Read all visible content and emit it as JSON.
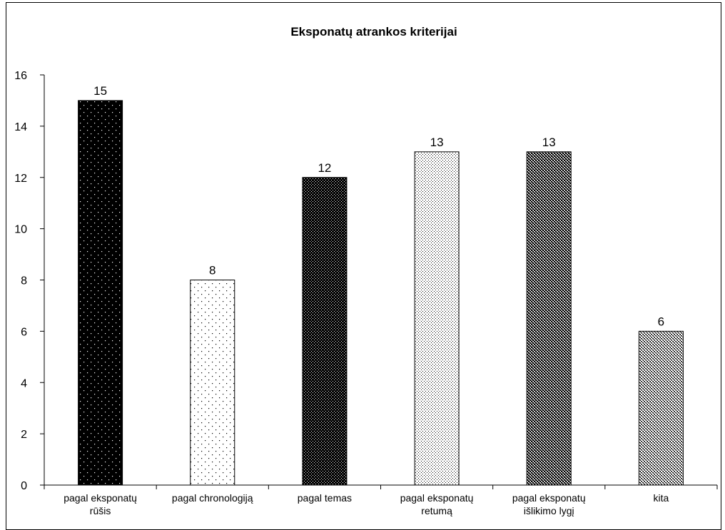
{
  "chart_data": {
    "type": "bar",
    "title": "Eksponatų atrankos kriterijai",
    "xlabel": "",
    "ylabel": "",
    "ylim": [
      0,
      16
    ],
    "yticks": [
      0,
      2,
      4,
      6,
      8,
      10,
      12,
      14,
      16
    ],
    "grid": false,
    "legend": "none",
    "categories": [
      [
        "pagal eksponatų",
        "rūšis"
      ],
      [
        "pagal chronologiją"
      ],
      [
        "pagal temas"
      ],
      [
        "pagal eksponatų",
        "retumą"
      ],
      [
        "pagal eksponatų",
        "išlikimo lygį"
      ],
      [
        "kita"
      ]
    ],
    "values": [
      15,
      8,
      12,
      13,
      13,
      6
    ],
    "bar_styles": [
      {
        "bg": "#000000",
        "dot": "#ffffff",
        "pattern": "sparse-dots"
      },
      {
        "bg": "#ffffff",
        "dot": "#000000",
        "pattern": "sparse-dots"
      },
      {
        "bg": "#000000",
        "dot": "#ffffff",
        "pattern": "dense-dots"
      },
      {
        "bg": "#ffffff",
        "dot": "#000000",
        "pattern": "dense-dots"
      },
      {
        "bg": "#000000",
        "dot": "#ffffff",
        "pattern": "check"
      },
      {
        "bg": "#ffffff",
        "dot": "#000000",
        "pattern": "check"
      }
    ]
  }
}
